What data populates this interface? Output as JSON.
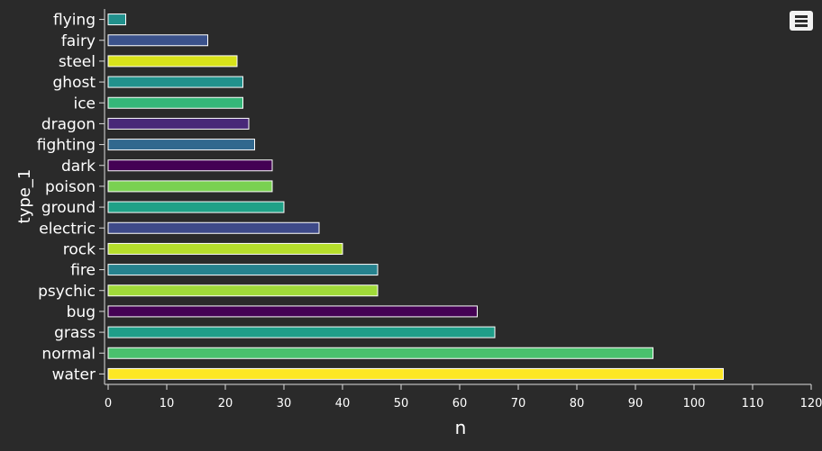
{
  "chart_data": {
    "type": "bar",
    "orientation": "horizontal",
    "categories": [
      "flying",
      "fairy",
      "steel",
      "ghost",
      "ice",
      "dragon",
      "fighting",
      "dark",
      "poison",
      "ground",
      "electric",
      "rock",
      "fire",
      "psychic",
      "bug",
      "grass",
      "normal",
      "water"
    ],
    "values": [
      3,
      17,
      22,
      23,
      23,
      24,
      25,
      28,
      28,
      30,
      36,
      40,
      46,
      46,
      63,
      66,
      93,
      105
    ],
    "colors": [
      "#21908c",
      "#3b528b",
      "#d8e219",
      "#21918c",
      "#35b779",
      "#482878",
      "#31688e",
      "#440154",
      "#7ad151",
      "#1fa187",
      "#3e4a89",
      "#b5de2b",
      "#26828e",
      "#a0da39",
      "#440154",
      "#1f9e89",
      "#4ac16d",
      "#fde725"
    ],
    "xlabel": "n",
    "ylabel": "type_1",
    "xlim": [
      0,
      120
    ],
    "xticks": [
      0,
      10,
      20,
      30,
      40,
      50,
      60,
      70,
      80,
      90,
      100,
      110,
      120
    ],
    "grid": false,
    "legend": "none",
    "background": "#2b2b2b",
    "text_color": "#ffffff"
  }
}
